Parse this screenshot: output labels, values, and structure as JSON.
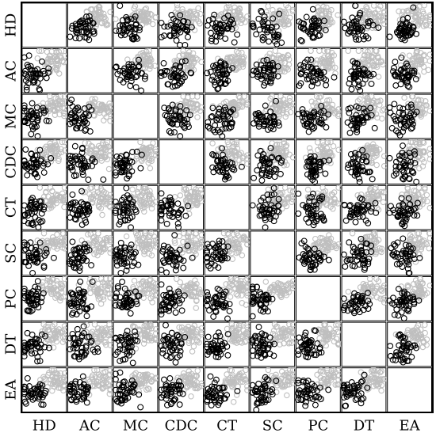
{
  "chart_data": {
    "type": "scatter",
    "variables": [
      "HD",
      "AC",
      "MC",
      "CDC",
      "CT",
      "SC",
      "PC",
      "DT",
      "EA"
    ],
    "xlabel": "",
    "ylabel": "",
    "title": "",
    "grid": false,
    "legend": "none",
    "diagonal": "empty",
    "marker": "open circle",
    "groups": [
      {
        "color": "#bfbfbf"
      },
      {
        "color": "#000000"
      }
    ]
  }
}
